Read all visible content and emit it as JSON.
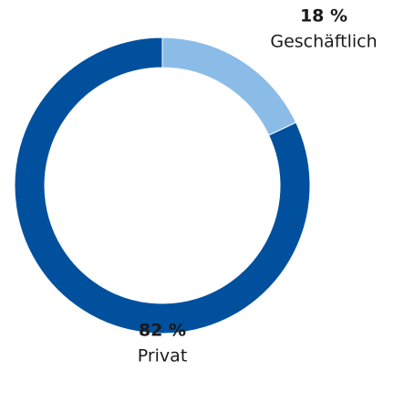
{
  "chart_data": {
    "type": "pie",
    "donut": true,
    "categories": [
      "Geschäftlich",
      "Privat"
    ],
    "values": [
      18,
      82
    ],
    "value_labels": [
      "18 %",
      "82 %"
    ],
    "colors": [
      "#8bbce8",
      "#00509e"
    ]
  }
}
